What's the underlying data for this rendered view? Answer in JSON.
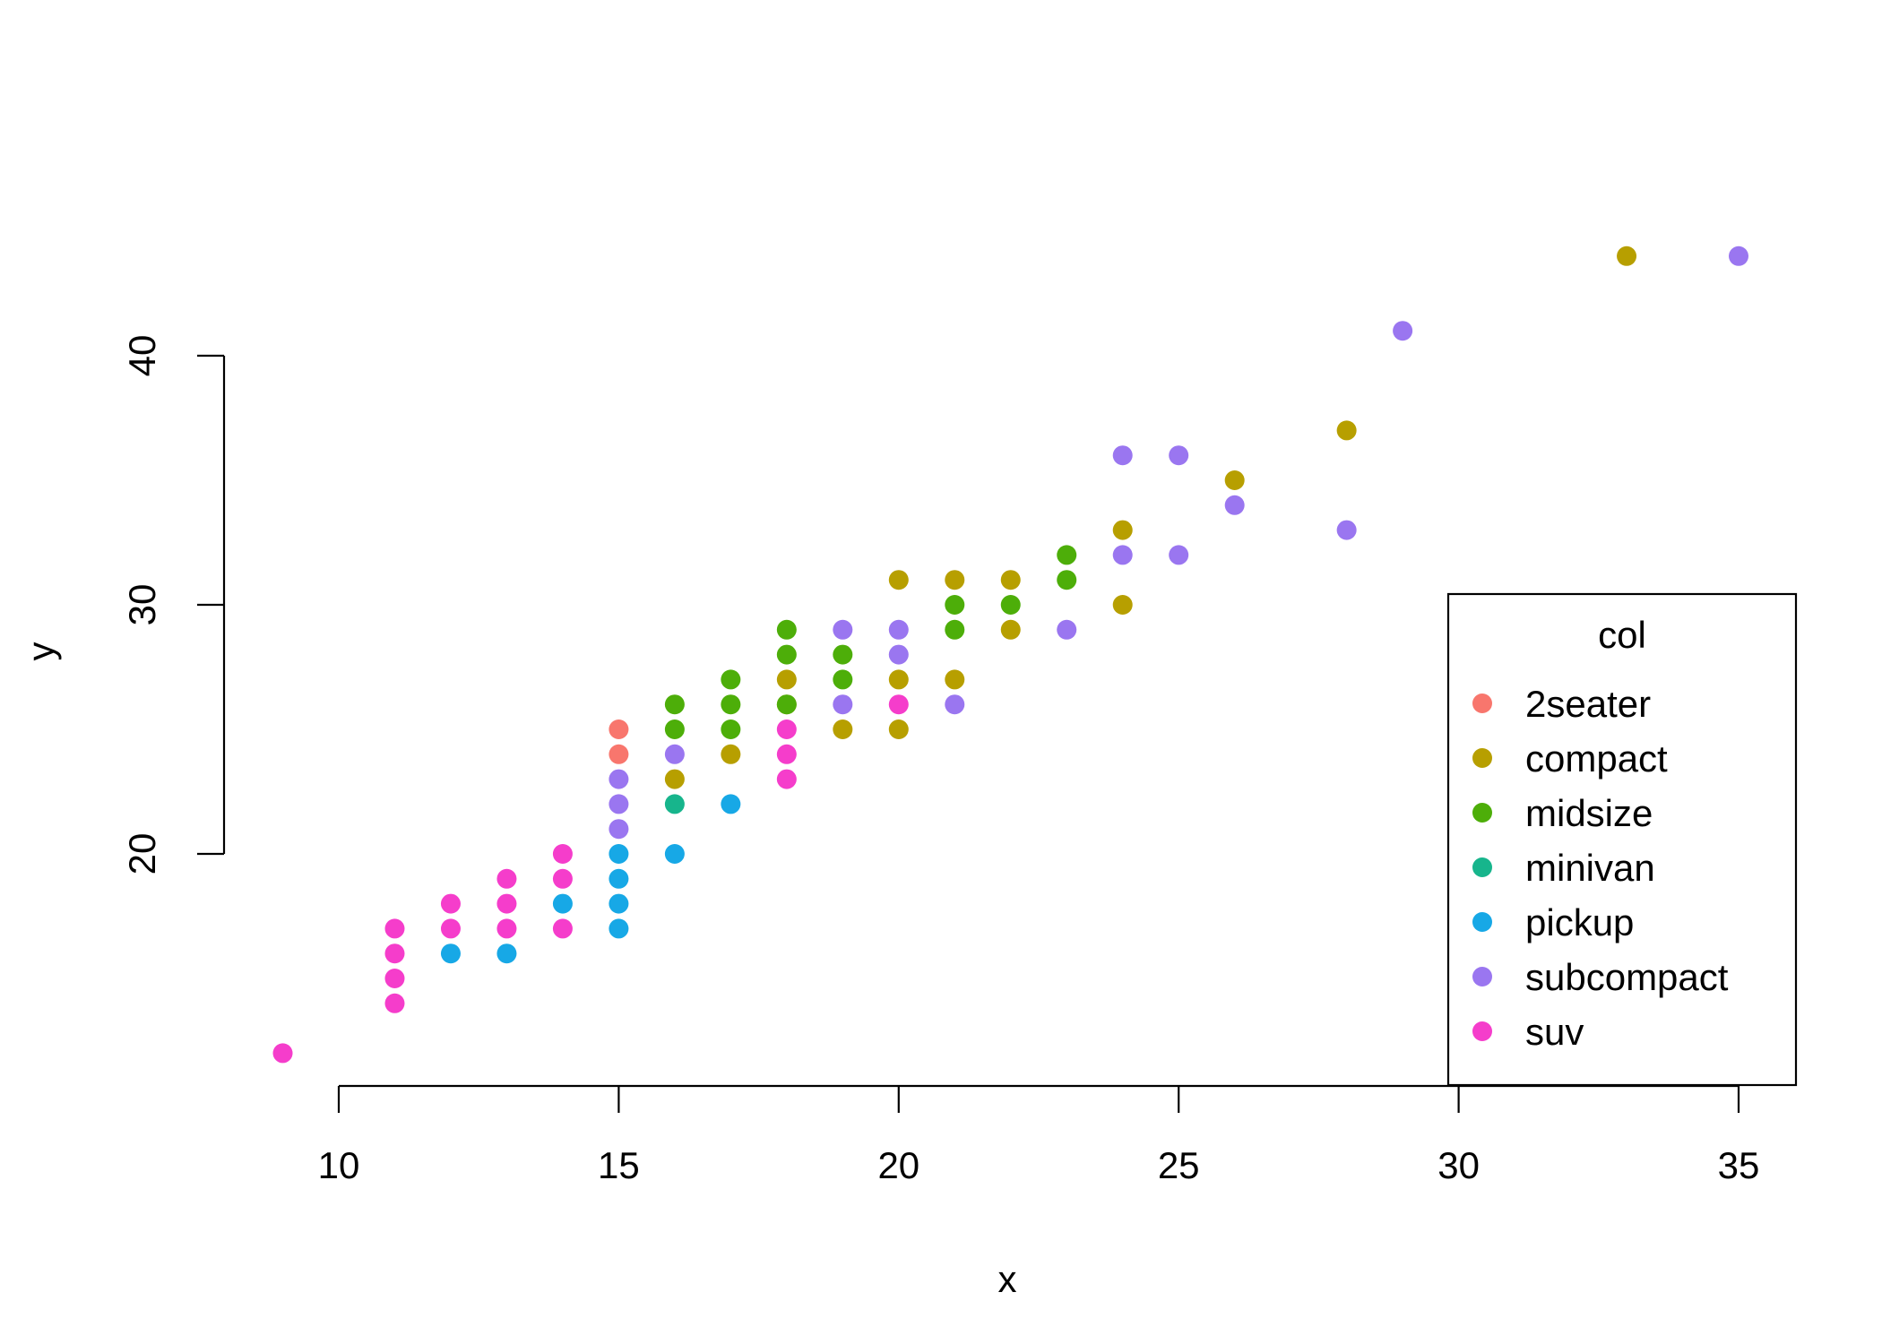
{
  "chart_data": {
    "type": "scatter",
    "xlabel": "x",
    "ylabel": "y",
    "xlim": [
      8.6,
      36.1
    ],
    "ylim": [
      11.2,
      45.4
    ],
    "xticks": [
      10,
      15,
      20,
      25,
      30,
      35
    ],
    "yticks": [
      20,
      30,
      40
    ],
    "legend": {
      "title": "col",
      "position": "bottom-right",
      "entries": [
        "2seater",
        "compact",
        "midsize",
        "minivan",
        "pickup",
        "subcompact",
        "suv"
      ]
    },
    "series": [
      {
        "name": "2seater",
        "color": "#F8766D",
        "points": [
          [
            15,
            25
          ],
          [
            15,
            24
          ]
        ]
      },
      {
        "name": "compact",
        "color": "#B79F00",
        "points": [
          [
            16,
            23
          ],
          [
            17,
            24
          ],
          [
            18,
            27
          ],
          [
            18,
            26
          ],
          [
            19,
            25
          ],
          [
            20,
            31
          ],
          [
            20,
            27
          ],
          [
            20,
            25
          ],
          [
            21,
            31
          ],
          [
            21,
            27
          ],
          [
            22,
            31
          ],
          [
            22,
            29
          ],
          [
            24,
            33
          ],
          [
            24,
            30
          ],
          [
            26,
            35
          ],
          [
            28,
            37
          ],
          [
            33,
            44
          ]
        ]
      },
      {
        "name": "midsize",
        "color": "#4DAE09",
        "points": [
          [
            16,
            26
          ],
          [
            16,
            25
          ],
          [
            17,
            27
          ],
          [
            17,
            26
          ],
          [
            17,
            25
          ],
          [
            18,
            29
          ],
          [
            18,
            28
          ],
          [
            18,
            26
          ],
          [
            19,
            28
          ],
          [
            19,
            27
          ],
          [
            21,
            30
          ],
          [
            21,
            29
          ],
          [
            22,
            30
          ],
          [
            23,
            32
          ],
          [
            23,
            31
          ]
        ]
      },
      {
        "name": "minivan",
        "color": "#17B58C",
        "points": [
          [
            16,
            22
          ]
        ]
      },
      {
        "name": "pickup",
        "color": "#17A8E6",
        "points": [
          [
            12,
            16
          ],
          [
            13,
            16
          ],
          [
            14,
            18
          ],
          [
            15,
            20
          ],
          [
            15,
            19
          ],
          [
            15,
            18
          ],
          [
            15,
            17
          ],
          [
            16,
            20
          ],
          [
            17,
            22
          ]
        ]
      },
      {
        "name": "subcompact",
        "color": "#9A76F0",
        "points": [
          [
            15,
            23
          ],
          [
            15,
            22
          ],
          [
            15,
            21
          ],
          [
            16,
            24
          ],
          [
            19,
            29
          ],
          [
            19,
            26
          ],
          [
            20,
            29
          ],
          [
            20,
            28
          ],
          [
            21,
            26
          ],
          [
            23,
            29
          ],
          [
            24,
            36
          ],
          [
            24,
            32
          ],
          [
            25,
            36
          ],
          [
            25,
            32
          ],
          [
            26,
            34
          ],
          [
            28,
            33
          ],
          [
            29,
            41
          ],
          [
            35,
            44
          ]
        ]
      },
      {
        "name": "suv",
        "color": "#F53DCB",
        "points": [
          [
            9,
            12
          ],
          [
            11,
            17
          ],
          [
            11,
            16
          ],
          [
            11,
            15
          ],
          [
            11,
            14
          ],
          [
            12,
            18
          ],
          [
            12,
            17
          ],
          [
            13,
            19
          ],
          [
            13,
            18
          ],
          [
            13,
            17
          ],
          [
            14,
            20
          ],
          [
            14,
            19
          ],
          [
            14,
            17
          ],
          [
            18,
            25
          ],
          [
            18,
            24
          ],
          [
            18,
            23
          ],
          [
            20,
            26
          ]
        ]
      }
    ]
  }
}
